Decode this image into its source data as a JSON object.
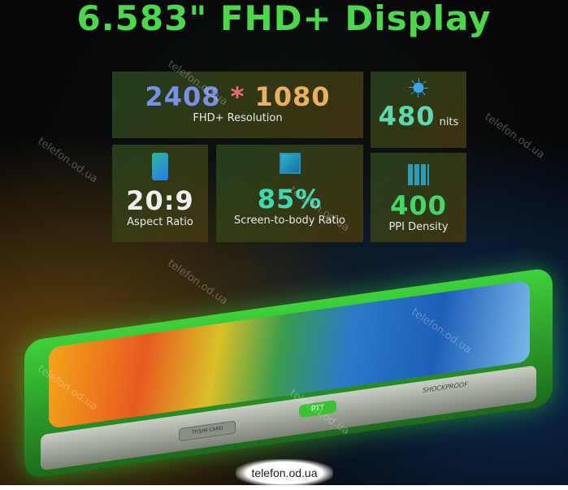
{
  "title": "6.583\" FHD+ Display",
  "resolution": {
    "w": "2408",
    "sep": "*",
    "h": "1080",
    "label": "FHD+ Resolution"
  },
  "brightness": {
    "value": "480",
    "unit": "nits",
    "icon": "sun-icon"
  },
  "aspect": {
    "value": "20:9",
    "label": "Aspect Ratio",
    "icon": "phone-icon"
  },
  "screen_body": {
    "value": "85%",
    "label": "Screen-to-body Ratio",
    "icon": "screen-icon"
  },
  "ppi": {
    "value": "400",
    "label": "PPI Density",
    "icon": "grid-icon"
  },
  "phone": {
    "ptt": "PTT",
    "sim": "TF/SIM CARD",
    "shock": "SHOCKPROOF"
  },
  "watermark": "telefon.od.ua",
  "colors": {
    "accent": "#4bd84a"
  }
}
